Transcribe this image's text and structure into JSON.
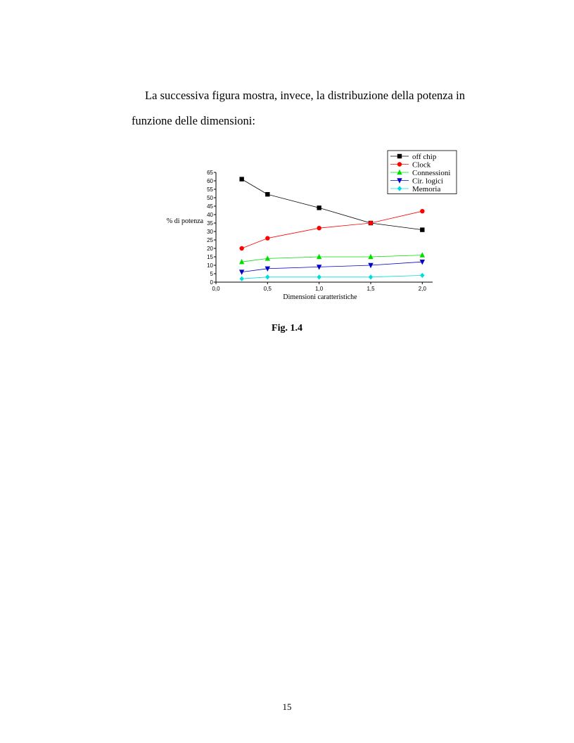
{
  "paragraph": {
    "line1": "La successiva figura mostra, invece, la distribuzione della potenza in",
    "line2": "funzione delle dimensioni:"
  },
  "figure_caption": "Fig. 1.4",
  "page_number": "15",
  "chart_data": {
    "type": "line",
    "xlabel": "Dimensioni caratteristiche",
    "ylabel": "% di potenza",
    "xlim": [
      0.0,
      2.1
    ],
    "ylim": [
      0,
      65
    ],
    "x_ticks": [
      "0,0",
      "0,5",
      "1,0",
      "1,5",
      "2,0"
    ],
    "x_tick_values": [
      0.0,
      0.5,
      1.0,
      1.5,
      2.0
    ],
    "y_ticks": [
      0,
      5,
      10,
      15,
      20,
      25,
      30,
      35,
      40,
      45,
      50,
      55,
      60,
      65
    ],
    "x": [
      0.25,
      0.5,
      1.0,
      1.5,
      2.0
    ],
    "legend_position": "top-right",
    "series": [
      {
        "name": "off  chip",
        "marker": "square",
        "color": "#000000",
        "values": [
          61,
          52,
          44,
          35,
          31
        ]
      },
      {
        "name": "Clock",
        "marker": "circle",
        "color": "#ff0000",
        "values": [
          20,
          26,
          32,
          35,
          42
        ]
      },
      {
        "name": "Connessioni",
        "marker": "triangle-up",
        "color": "#00dd00",
        "values": [
          12,
          14,
          15,
          15,
          16
        ]
      },
      {
        "name": "Cir. logici",
        "marker": "triangle-down",
        "color": "#0000cc",
        "values": [
          6,
          8,
          9,
          10,
          12
        ]
      },
      {
        "name": "Memoria",
        "marker": "diamond",
        "color": "#00dddd",
        "values": [
          2,
          3,
          3,
          3,
          4
        ]
      }
    ]
  }
}
